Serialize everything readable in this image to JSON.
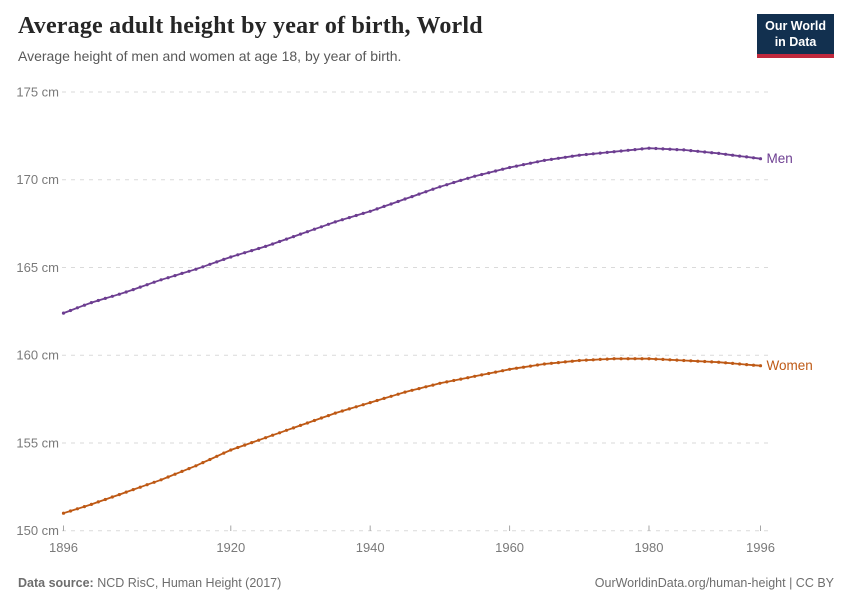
{
  "header": {
    "title": "Average adult height by year of birth, World",
    "subtitle": "Average height of men and women at age 18, by year of birth.",
    "logo": {
      "line1": "Our World",
      "line2": "in Data",
      "bg_color": "#12304f",
      "accent_color": "#c0283c"
    }
  },
  "footer": {
    "source_label": "Data source:",
    "source_value": " NCD RisC, Human Height (2017)",
    "right_text": "OurWorldinData.org/human-height | CC BY"
  },
  "chart_data": {
    "type": "line",
    "title": "Average adult height by year of birth, World",
    "xlabel": "",
    "ylabel": "",
    "xlim": [
      1896,
      1996
    ],
    "ylim": [
      150,
      175
    ],
    "grid": "horizontal-dashed",
    "legend_position": "end-of-line-labels",
    "markers": "annual-dots",
    "x_ticks": [
      1896,
      1920,
      1940,
      1960,
      1980,
      1996
    ],
    "y_ticks": [
      {
        "value": 150,
        "label": "150 cm"
      },
      {
        "value": 155,
        "label": "155 cm"
      },
      {
        "value": 160,
        "label": "160 cm"
      },
      {
        "value": 165,
        "label": "165 cm"
      },
      {
        "value": 170,
        "label": "170 cm"
      },
      {
        "value": 175,
        "label": "175 cm"
      }
    ],
    "x": [
      1896,
      1900,
      1905,
      1910,
      1915,
      1920,
      1925,
      1930,
      1935,
      1940,
      1945,
      1950,
      1955,
      1960,
      1965,
      1970,
      1975,
      1980,
      1985,
      1990,
      1996
    ],
    "series": [
      {
        "name": "Men",
        "unit": "cm",
        "color": "#6d3e91",
        "values": [
          162.4,
          163.0,
          163.6,
          164.3,
          164.9,
          165.6,
          166.2,
          166.9,
          167.6,
          168.2,
          168.9,
          169.6,
          170.2,
          170.7,
          171.1,
          171.4,
          171.6,
          171.8,
          171.7,
          171.5,
          171.2
        ]
      },
      {
        "name": "Women",
        "unit": "cm",
        "color": "#be5915",
        "values": [
          151.0,
          151.5,
          152.2,
          152.9,
          153.7,
          154.6,
          155.3,
          156.0,
          156.7,
          157.3,
          157.9,
          158.4,
          158.8,
          159.2,
          159.5,
          159.7,
          159.8,
          159.8,
          159.7,
          159.6,
          159.4
        ]
      }
    ],
    "axis_colors": {
      "grid": "#dadada",
      "tick_text": "#7a7a7a",
      "tick_mark": "#a6a6a6"
    }
  }
}
